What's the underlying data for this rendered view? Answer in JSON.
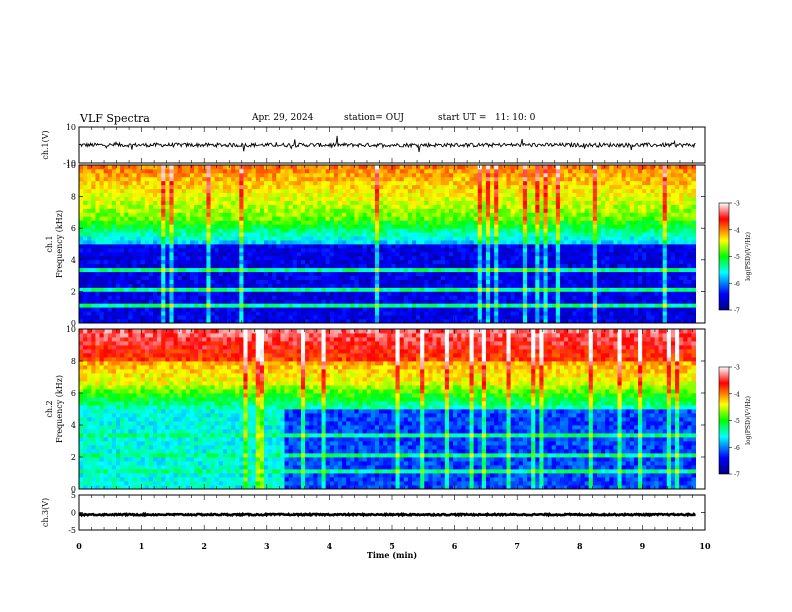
{
  "header": {
    "title": "VLF Spectra",
    "date": "Apr. 29, 2024",
    "station": "station= OUJ",
    "start": "start UT =   11: 10: 0"
  },
  "chart_data": {
    "type": "heatmap",
    "x_axis": {
      "label": "Time (min)",
      "range": [
        0,
        10
      ],
      "ticks": [
        "0",
        "1",
        "2",
        "3",
        "4",
        "5",
        "6",
        "7",
        "8",
        "9",
        "10"
      ]
    },
    "panels": [
      {
        "id": "ch1-waveform",
        "type": "line",
        "ylabel": "ch.1(V)",
        "ylim": [
          -10,
          10
        ],
        "y_ticks": [
          "10",
          "-10"
        ],
        "signal_level": 0,
        "data_end_min": 9.85
      },
      {
        "id": "ch1-spectrogram",
        "type": "heatmap",
        "ylabel_line1": "ch.1",
        "ylabel_line2": "Frequency (kHz)",
        "ylim": [
          0,
          10
        ],
        "y_ticks": [
          "0",
          "2",
          "4",
          "6",
          "8",
          "10"
        ],
        "data_end_min": 9.85,
        "colorbar": {
          "label": "log(PSD)(V²/Hz)",
          "range": [
            -7,
            -3
          ],
          "ticks": [
            "-3",
            "-4",
            "-5",
            "-6",
            "-7"
          ]
        }
      },
      {
        "id": "ch2-spectrogram",
        "type": "heatmap",
        "ylabel_line1": "ch.2",
        "ylabel_line2": "Frequency (kHz)",
        "ylim": [
          0,
          10
        ],
        "y_ticks": [
          "0",
          "2",
          "4",
          "6",
          "8",
          "10"
        ],
        "data_end_min": 9.85,
        "colorbar": {
          "label": "log(PSD)(V²/Hz)",
          "range": [
            -7,
            -3
          ],
          "ticks": [
            "-3",
            "-4",
            "-5",
            "-6",
            "-7"
          ]
        }
      },
      {
        "id": "ch3-waveform",
        "type": "line",
        "ylabel": "ch.3(V)",
        "ylim": [
          -5,
          5
        ],
        "y_ticks": [
          "5",
          "0",
          "-5"
        ],
        "signal_level": -0.6,
        "data_end_min": 9.85
      }
    ],
    "colormap": [
      "#000080",
      "#0000ff",
      "#00ffff",
      "#00ff00",
      "#ffff00",
      "#ff0000",
      "#ffffff"
    ]
  }
}
